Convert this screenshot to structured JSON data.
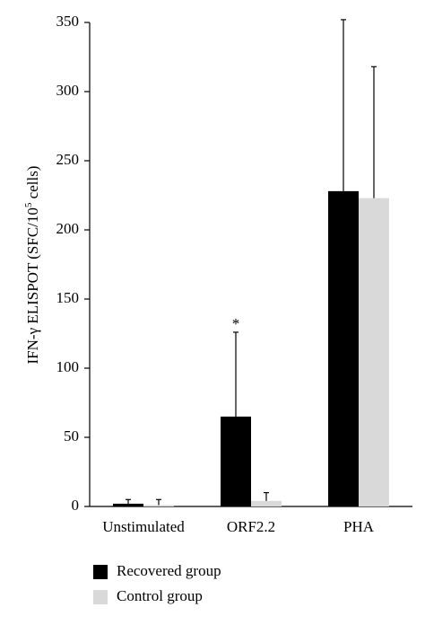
{
  "chart_data": {
    "type": "bar",
    "ylabel": {
      "main": "IFN-γ ELISPOT (SFC/10",
      "sup": "5",
      "end": " cells)"
    },
    "categories": [
      "Unstimulated",
      "ORF2.2",
      "PHA"
    ],
    "series": [
      {
        "name": "Recovered group",
        "color": "#000000",
        "values": [
          2,
          65,
          228
        ],
        "errors": [
          3,
          61,
          124
        ]
      },
      {
        "name": "Control group",
        "color": "#d9d9d9",
        "values": [
          1,
          4,
          223
        ],
        "errors": [
          4,
          6,
          95
        ]
      }
    ],
    "annotation": "*",
    "ylim": [
      0,
      350
    ],
    "yticks": [
      0,
      50,
      100,
      150,
      200,
      250,
      300,
      350
    ],
    "grid": false,
    "legend": "bottom"
  }
}
